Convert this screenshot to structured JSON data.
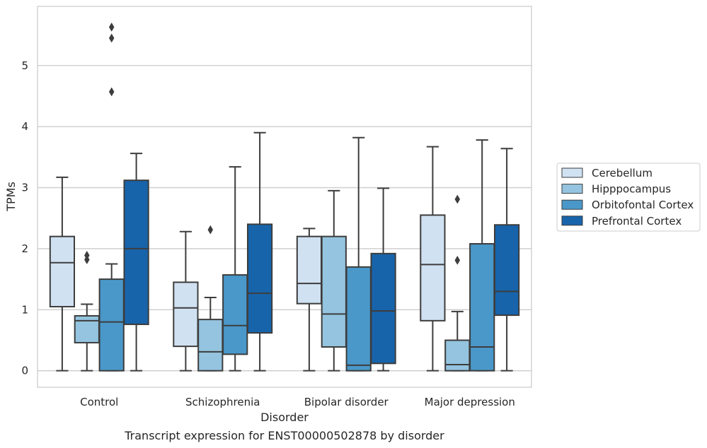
{
  "chart_data": {
    "type": "box",
    "title": "",
    "caption": "Transcript expression for ENST00000502878 by disorder",
    "xlabel": "Disorder",
    "ylabel": "TPMs",
    "ylim": [
      -0.27,
      5.97
    ],
    "yticks": [
      0,
      1,
      2,
      3,
      4,
      5
    ],
    "grid": "horizontal",
    "legend_position": "right",
    "categories": [
      "Control",
      "Schizophrenia",
      "Bipolar disorder",
      "Major depression"
    ],
    "series": [
      {
        "name": "Cerebellum",
        "color": "#d0e1f2",
        "boxes": [
          {
            "whisker_low": 0.0,
            "q1": 1.05,
            "median": 1.77,
            "q3": 2.2,
            "whisker_high": 3.17,
            "outliers": []
          },
          {
            "whisker_low": 0.0,
            "q1": 0.4,
            "median": 1.03,
            "q3": 1.45,
            "whisker_high": 2.28,
            "outliers": []
          },
          {
            "whisker_low": 0.0,
            "q1": 1.1,
            "median": 1.43,
            "q3": 2.2,
            "whisker_high": 2.33,
            "outliers": []
          },
          {
            "whisker_low": 0.0,
            "q1": 0.82,
            "median": 1.74,
            "q3": 2.55,
            "whisker_high": 3.67,
            "outliers": []
          }
        ]
      },
      {
        "name": "Hipppocampus",
        "color": "#94c4df",
        "boxes": [
          {
            "whisker_low": 0.0,
            "q1": 0.46,
            "median": 0.82,
            "q3": 0.9,
            "whisker_high": 1.09,
            "outliers": [
              1.82,
              1.89
            ]
          },
          {
            "whisker_low": 0.0,
            "q1": 0.0,
            "median": 0.31,
            "q3": 0.84,
            "whisker_high": 1.2,
            "outliers": [
              2.31
            ]
          },
          {
            "whisker_low": 0.0,
            "q1": 0.39,
            "median": 0.93,
            "q3": 2.2,
            "whisker_high": 2.95,
            "outliers": []
          },
          {
            "whisker_low": 0.0,
            "q1": 0.0,
            "median": 0.1,
            "q3": 0.5,
            "whisker_high": 0.97,
            "outliers": [
              1.81,
              2.81
            ]
          }
        ]
      },
      {
        "name": "Orbitofontal Cortex",
        "color": "#4a98c9",
        "boxes": [
          {
            "whisker_low": 0.0,
            "q1": 0.0,
            "median": 0.8,
            "q3": 1.5,
            "whisker_high": 1.75,
            "outliers": [
              4.57,
              5.45,
              5.63
            ]
          },
          {
            "whisker_low": 0.0,
            "q1": 0.27,
            "median": 0.74,
            "q3": 1.57,
            "whisker_high": 3.34,
            "outliers": []
          },
          {
            "whisker_low": 0.0,
            "q1": 0.0,
            "median": 0.09,
            "q3": 1.7,
            "whisker_high": 3.82,
            "outliers": []
          },
          {
            "whisker_low": 0.0,
            "q1": 0.0,
            "median": 0.39,
            "q3": 2.08,
            "whisker_high": 3.78,
            "outliers": []
          }
        ]
      },
      {
        "name": "Prefrontal Cortex",
        "color": "#1764ab",
        "boxes": [
          {
            "whisker_low": 0.0,
            "q1": 0.76,
            "median": 2.0,
            "q3": 3.12,
            "whisker_high": 3.56,
            "outliers": []
          },
          {
            "whisker_low": 0.0,
            "q1": 0.62,
            "median": 1.27,
            "q3": 2.4,
            "whisker_high": 3.9,
            "outliers": []
          },
          {
            "whisker_low": 0.0,
            "q1": 0.12,
            "median": 0.98,
            "q3": 1.92,
            "whisker_high": 2.99,
            "outliers": []
          },
          {
            "whisker_low": 0.0,
            "q1": 0.91,
            "median": 1.3,
            "q3": 2.39,
            "whisker_high": 3.64,
            "outliers": []
          }
        ]
      }
    ]
  }
}
